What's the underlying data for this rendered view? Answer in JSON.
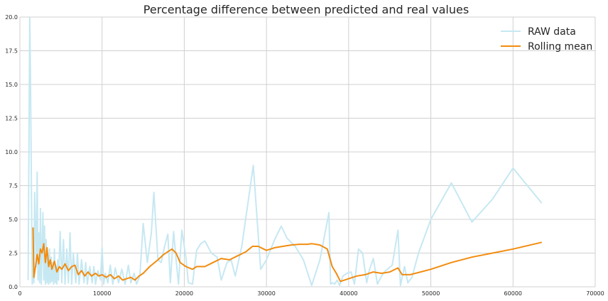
{
  "chart_data": {
    "type": "line",
    "title": "Percentage difference between predicted and real values",
    "xlabel": "",
    "ylabel": "",
    "xlim": [
      0,
      70000
    ],
    "ylim": [
      0,
      20
    ],
    "x_ticks": [
      0,
      10000,
      20000,
      30000,
      40000,
      50000,
      60000,
      70000
    ],
    "x_tick_labels": [
      "0",
      "10000",
      "20000",
      "30000",
      "40000",
      "50000",
      "60000",
      "70000"
    ],
    "y_ticks": [
      0,
      2.5,
      5,
      7.5,
      10,
      12.5,
      15,
      17.5,
      20
    ],
    "y_tick_labels": [
      "0.0",
      "2.5",
      "5.0",
      "7.5",
      "10.0",
      "12.5",
      "15.0",
      "17.5",
      "20.0"
    ],
    "grid": true,
    "legend_position": "top-right",
    "colors": {
      "raw": "#c6e8f2",
      "rolling": "#f28c0f",
      "grid": "#d0d0d0",
      "text": "#262626"
    },
    "series": [
      {
        "name": "RAW data",
        "x": [
          1000,
          1200,
          1300,
          1400,
          1500,
          1600,
          1700,
          1800,
          2000,
          2100,
          2200,
          2300,
          2400,
          2500,
          2600,
          2800,
          2900,
          3000,
          3100,
          3200,
          3300,
          3400,
          3500,
          3600,
          3700,
          3800,
          3900,
          4000,
          4100,
          4200,
          4300,
          4400,
          4500,
          4600,
          4700,
          4900,
          5100,
          5300,
          5500,
          5700,
          5900,
          6100,
          6300,
          6500,
          6800,
          7000,
          7200,
          7500,
          7800,
          8000,
          8200,
          8500,
          8800,
          9000,
          9200,
          9500,
          9800,
          10000,
          10200,
          10400,
          10700,
          11000,
          11300,
          11600,
          12000,
          12400,
          12800,
          13200,
          13500,
          13900,
          14200,
          14600,
          15000,
          15500,
          16000,
          16300,
          16800,
          17200,
          17600,
          18000,
          18300,
          18700,
          19000,
          19300,
          19700,
          20200,
          20500,
          21000,
          21500,
          22000,
          22500,
          23300,
          24000,
          24500,
          25200,
          25700,
          26200,
          27000,
          28400,
          29300,
          30000,
          31000,
          31800,
          32500,
          33500,
          34500,
          35500,
          36500,
          37600,
          37800,
          38000,
          38300,
          38600,
          38900,
          39300,
          39800,
          40300,
          40700,
          41200,
          41700,
          42200,
          42500,
          43000,
          43500,
          44000,
          44500,
          45300,
          46000,
          46300,
          46800,
          47200,
          47700,
          48500,
          50000,
          52500,
          55000,
          57500,
          60000,
          63500
        ],
        "y": [
          0.5,
          20.2,
          15.0,
          7.5,
          0.2,
          3.0,
          0.3,
          7.0,
          1.5,
          8.5,
          0.5,
          4.0,
          0.3,
          5.8,
          0.2,
          5.5,
          0.5,
          4.5,
          0.2,
          3.5,
          0.3,
          2.5,
          0.2,
          2.8,
          0.3,
          2.2,
          0.4,
          1.8,
          0.2,
          2.8,
          0.3,
          1.5,
          0.2,
          2.0,
          0.5,
          4.1,
          0.3,
          3.5,
          0.2,
          2.8,
          0.3,
          4.0,
          0.2,
          2.5,
          0.3,
          2.5,
          0.2,
          2.0,
          0.3,
          1.8,
          0.2,
          1.5,
          0.3,
          1.5,
          0.2,
          1.2,
          0.5,
          2.9,
          0.2,
          1.0,
          0.3,
          1.6,
          0.2,
          1.4,
          0.3,
          1.3,
          0.2,
          1.6,
          0.3,
          1.0,
          0.2,
          0.8,
          4.7,
          1.8,
          4.0,
          7.0,
          2.0,
          1.8,
          3.0,
          3.9,
          0.3,
          4.1,
          2.0,
          0.2,
          4.2,
          2.2,
          0.3,
          0.2,
          2.7,
          3.2,
          3.4,
          2.5,
          2.2,
          0.5,
          1.8,
          2.0,
          0.8,
          3.0,
          9.0,
          1.3,
          2.0,
          3.5,
          4.5,
          3.6,
          3.0,
          2.0,
          0.1,
          2.0,
          5.5,
          0.2,
          0.3,
          0.2,
          0.5,
          0.1,
          0.8,
          1.0,
          1.1,
          0.2,
          2.8,
          2.5,
          0.3,
          1.2,
          2.1,
          0.2,
          0.8,
          1.2,
          1.6,
          4.2,
          0.1,
          1.5,
          0.3,
          0.7,
          2.5,
          5.0,
          7.7,
          4.8,
          6.5,
          8.8,
          6.2
        ]
      },
      {
        "name": "Rolling mean",
        "x": [
          1600,
          1700,
          1900,
          2100,
          2300,
          2500,
          2700,
          2900,
          3100,
          3300,
          3500,
          3700,
          3900,
          4200,
          4500,
          4800,
          5100,
          5500,
          5900,
          6300,
          6700,
          7100,
          7500,
          7900,
          8300,
          8700,
          9200,
          9600,
          10000,
          10500,
          11000,
          11500,
          12000,
          12500,
          13000,
          13500,
          14000,
          14500,
          15000,
          15800,
          16800,
          17500,
          18500,
          19000,
          19500,
          20200,
          21000,
          21500,
          22500,
          23500,
          24500,
          25500,
          26500,
          27500,
          28300,
          29000,
          30000,
          31000,
          32000,
          33000,
          34000,
          35000,
          35500,
          36500,
          37400,
          38000,
          38500,
          39000,
          40000,
          41000,
          42000,
          43000,
          44000,
          45000,
          46000,
          46500,
          47500,
          50000,
          52500,
          55000,
          57500,
          60000,
          63500
        ],
        "y": [
          4.4,
          0.7,
          1.5,
          2.4,
          1.7,
          2.8,
          2.5,
          3.2,
          1.8,
          2.9,
          1.5,
          2.0,
          1.3,
          1.9,
          1.1,
          1.5,
          1.3,
          1.7,
          1.2,
          1.5,
          1.6,
          0.9,
          1.2,
          0.8,
          1.1,
          0.8,
          1.0,
          0.8,
          0.9,
          0.7,
          0.9,
          0.6,
          0.8,
          0.5,
          0.6,
          0.7,
          0.5,
          0.8,
          1.0,
          1.5,
          2.0,
          2.4,
          2.8,
          2.5,
          1.8,
          1.5,
          1.3,
          1.5,
          1.5,
          1.8,
          2.1,
          2.0,
          2.3,
          2.6,
          3.0,
          3.0,
          2.7,
          2.9,
          3.0,
          3.1,
          3.15,
          3.15,
          3.2,
          3.1,
          2.8,
          1.5,
          1.0,
          0.4,
          0.6,
          0.8,
          0.9,
          1.1,
          1.0,
          1.1,
          1.4,
          0.9,
          0.9,
          1.3,
          1.8,
          2.2,
          2.5,
          2.8,
          3.3
        ]
      }
    ]
  }
}
